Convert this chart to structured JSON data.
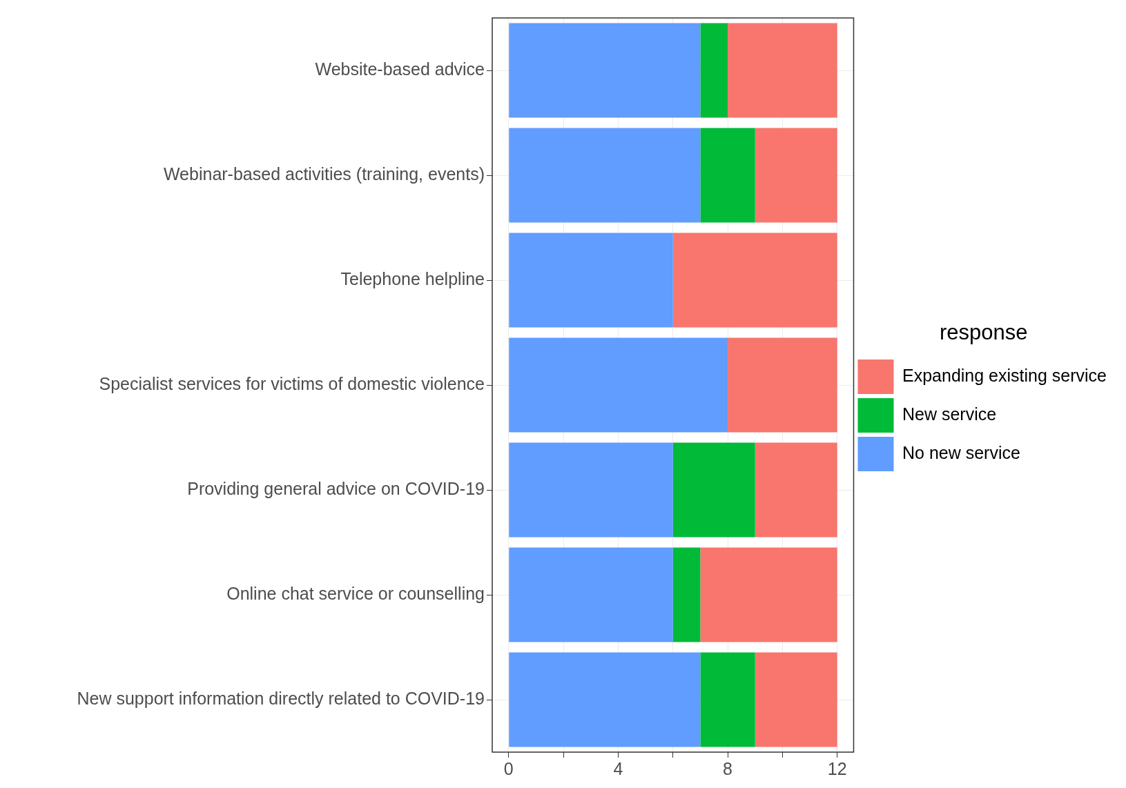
{
  "chart_data": {
    "type": "bar",
    "orientation": "horizontal",
    "stacked": true,
    "categories": [
      "Website-based advice",
      "Webinar-based activities (training, events)",
      "Telephone helpline",
      "Specialist services for victims of domestic violence",
      "Providing general advice on COVID-19",
      "Online chat service or counselling",
      "New support information directly related to COVID-19"
    ],
    "series": [
      {
        "name": "No new service",
        "color": "#619cff",
        "values": [
          7,
          7,
          6,
          8,
          6,
          6,
          7
        ]
      },
      {
        "name": "New service",
        "color": "#00ba38",
        "values": [
          1,
          2,
          0,
          0,
          3,
          1,
          2
        ]
      },
      {
        "name": "Expanding existing service",
        "color": "#f8766d",
        "values": [
          4,
          3,
          6,
          4,
          3,
          5,
          3
        ]
      }
    ],
    "xlim": [
      -0.6,
      12.6
    ],
    "xticks": [
      0,
      {
        "value": 2,
        "label": null
      },
      4,
      {
        "value": 6,
        "label": null
      },
      8,
      {
        "value": 10,
        "label": null
      },
      12
    ],
    "legend": "right",
    "legend_title": "response",
    "grid": true
  }
}
